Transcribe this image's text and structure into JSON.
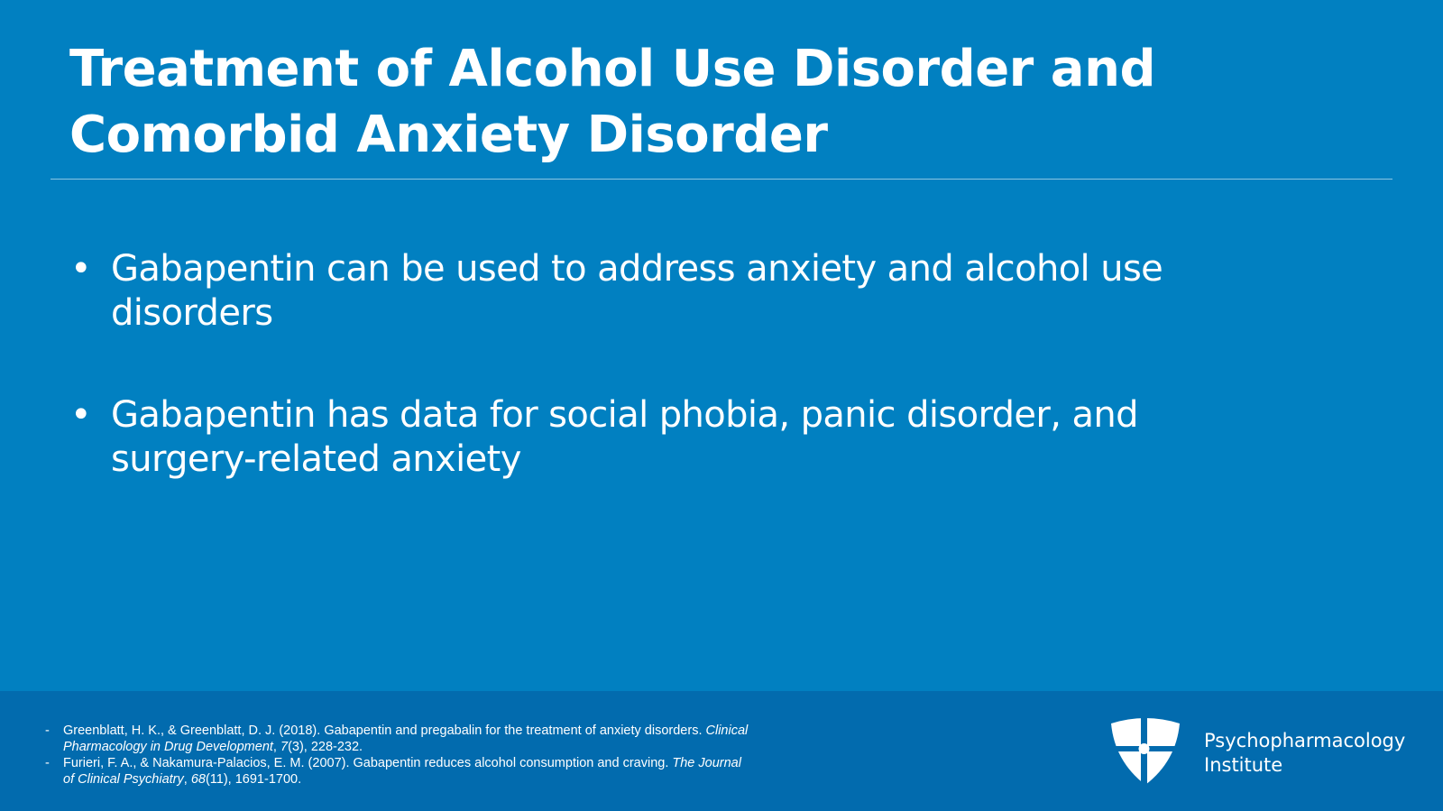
{
  "slide": {
    "title": "Treatment of Alcohol Use Disorder and Comorbid Anxiety Disorder",
    "bullets": [
      "Gabapentin can be used to address anxiety and alcohol use disorders",
      "Gabapentin has data for social phobia, panic disorder, and surgery-related anxiety"
    ]
  },
  "references": [
    {
      "pre": "Greenblatt, H. K., & Greenblatt, D. J. (2018). Gabapentin and pregabalin for the treatment of anxiety disorders. ",
      "journal": "Clinical Pharmacology in Drug Development",
      "sep": ", ",
      "volume": "7",
      "post": "(3), 228-232."
    },
    {
      "pre": "Furieri, F. A., & Nakamura-Palacios, E. M. (2007). Gabapentin reduces alcohol consumption and craving. ",
      "journal": "The Journal of Clinical Psychiatry",
      "sep": ", ",
      "volume": "68",
      "post": "(11), 1691-1700."
    }
  ],
  "logo": {
    "line1": "Psychopharmacology",
    "line2": "Institute",
    "icon": "shield-cross-icon"
  },
  "colors": {
    "background": "#0180c1",
    "footer": "#026bae",
    "text": "#ffffff"
  }
}
